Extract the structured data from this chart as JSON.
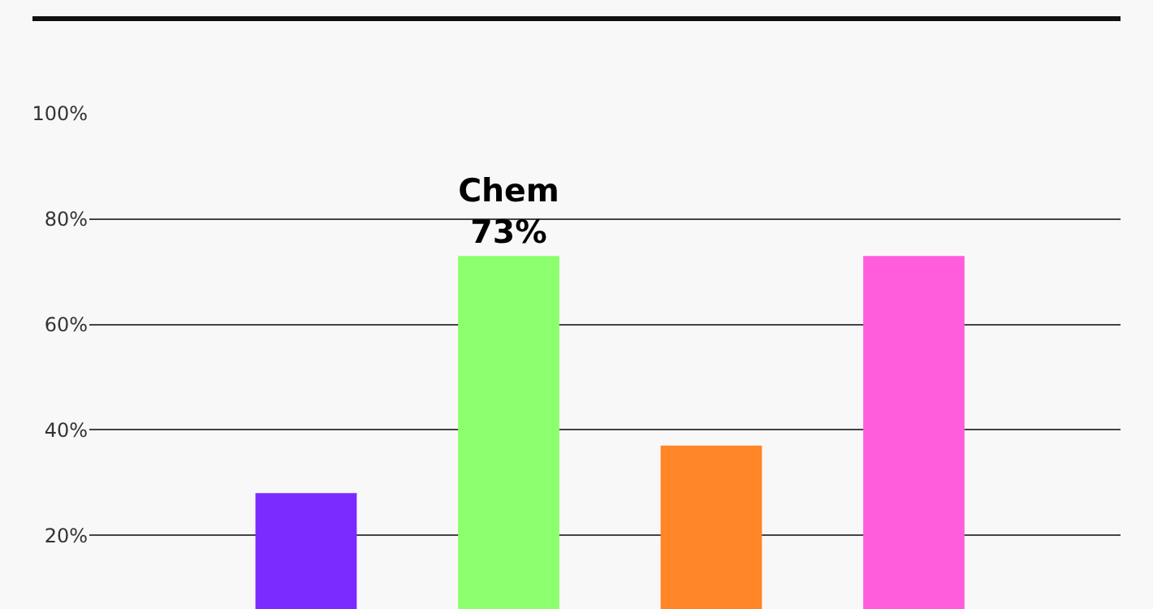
{
  "chart_data": {
    "type": "bar",
    "categories": [
      null,
      null,
      null,
      null
    ],
    "values": [
      28,
      73,
      37,
      73
    ],
    "colors": [
      "#7b2bff",
      "#8cff6e",
      "#ff8526",
      "#ff5ddc"
    ],
    "value_labels": [
      null,
      "Chem\n73%",
      null,
      null
    ],
    "ylim": [
      6,
      100
    ],
    "yticks": [
      {
        "value": 20,
        "label": "20%"
      },
      {
        "value": 40,
        "label": "40%"
      },
      {
        "value": 60,
        "label": "60%"
      },
      {
        "value": 80,
        "label": "80%"
      },
      {
        "value": 100,
        "label": "100%"
      }
    ],
    "grid": "y"
  }
}
